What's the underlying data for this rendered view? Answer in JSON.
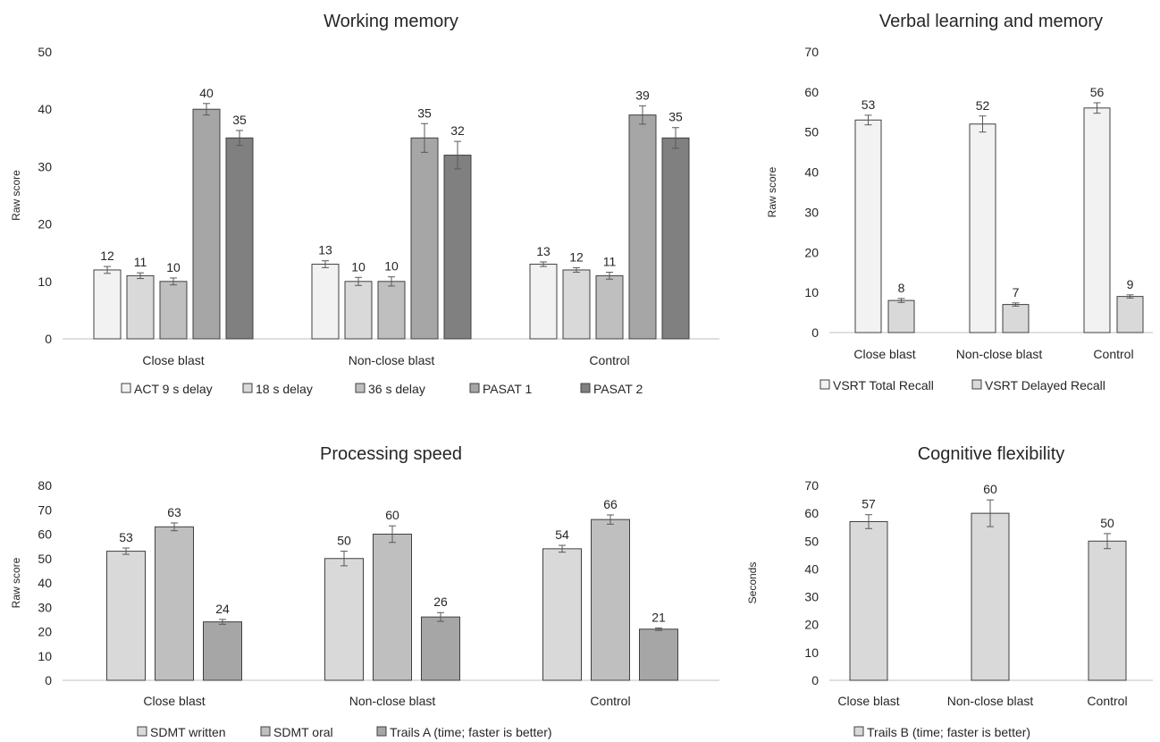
{
  "chart_data": [
    {
      "type": "bar",
      "title": "Working memory",
      "ylabel": "Raw score",
      "xlabel": "",
      "ylim": [
        0,
        50
      ],
      "yticks": [
        0,
        10,
        20,
        30,
        40,
        50
      ],
      "categories": [
        "Close blast",
        "Non-close blast",
        "Control"
      ],
      "series": [
        {
          "name": "ACT 9 s delay",
          "values": [
            12,
            13,
            13
          ],
          "errors": [
            0.6,
            0.6,
            0.4
          ],
          "color": "#f2f2f2",
          "label_color": "#262626"
        },
        {
          "name": "18 s delay",
          "values": [
            11,
            10,
            12
          ],
          "errors": [
            0.5,
            0.7,
            0.4
          ],
          "color": "#d9d9d9",
          "label_color": "#262626"
        },
        {
          "name": "36 s delay",
          "values": [
            10,
            10,
            11
          ],
          "errors": [
            0.6,
            0.8,
            0.6
          ],
          "color": "#bfbfbf",
          "label_color": "#262626"
        },
        {
          "name": "PASAT 1",
          "values": [
            40,
            35,
            39
          ],
          "errors": [
            1.0,
            2.5,
            1.6
          ],
          "color": "#a6a6a6",
          "label_color": "#262626"
        },
        {
          "name": "PASAT 2",
          "values": [
            35,
            32,
            35
          ],
          "errors": [
            1.3,
            2.4,
            1.8
          ],
          "color": "#808080",
          "label_color": "#262626"
        }
      ],
      "value_label_colors": [
        [
          "#262626",
          "#262626",
          "#262626",
          "#262626",
          "#262626"
        ],
        [
          "#262626",
          "#262626",
          "#262626",
          "#7f7f7f",
          "#7f7f7f"
        ],
        [
          "#262626",
          "#262626",
          "#262626",
          "#7f7f7f",
          "#7f7f7f"
        ]
      ],
      "legend": "bottom"
    },
    {
      "type": "bar",
      "title": "Verbal learning and memory",
      "ylabel": "Raw score",
      "xlabel": "",
      "ylim": [
        0,
        70
      ],
      "yticks": [
        0,
        10,
        20,
        30,
        40,
        50,
        60,
        70
      ],
      "categories": [
        "Close blast",
        "Non-close blast",
        "Control"
      ],
      "series": [
        {
          "name": "VSRT Total Recall",
          "values": [
            53,
            52,
            56
          ],
          "errors": [
            1.2,
            2.0,
            1.3
          ],
          "color": "#f2f2f2"
        },
        {
          "name": "VSRT Delayed Recall",
          "values": [
            8,
            7,
            9
          ],
          "errors": [
            0.5,
            0.4,
            0.4
          ],
          "color": "#d9d9d9"
        }
      ],
      "value_label_colors": [
        [
          "#262626",
          "#262626"
        ],
        [
          "#262626",
          "#262626"
        ],
        [
          "#262626",
          "#262626"
        ]
      ],
      "legend": "bottom"
    },
    {
      "type": "bar",
      "title": "Processing speed",
      "ylabel": "Raw score",
      "xlabel": "",
      "ylim": [
        0,
        80
      ],
      "yticks": [
        0,
        10,
        20,
        30,
        40,
        50,
        60,
        70,
        80
      ],
      "categories": [
        "Close blast",
        "Non-close blast",
        "Control"
      ],
      "series": [
        {
          "name": "SDMT written",
          "values": [
            53,
            50,
            54
          ],
          "errors": [
            1.3,
            3.0,
            1.4
          ],
          "color": "#d9d9d9"
        },
        {
          "name": "SDMT oral",
          "values": [
            63,
            60,
            66
          ],
          "errors": [
            1.6,
            3.4,
            1.9
          ],
          "color": "#bfbfbf"
        },
        {
          "name": "Trails A (time; faster is better)",
          "values": [
            24,
            26,
            21
          ],
          "errors": [
            1.0,
            1.8,
            0.5
          ],
          "color": "#a6a6a6"
        }
      ],
      "value_label_colors": [
        [
          "#262626",
          "#262626",
          "#262626"
        ],
        [
          "#262626",
          "#262626",
          "#262626"
        ],
        [
          "#262626",
          "#262626",
          "#262626"
        ]
      ],
      "legend": "bottom"
    },
    {
      "type": "bar",
      "title": "Cognitive flexibility",
      "ylabel": "Seconds",
      "xlabel": "",
      "ylim": [
        0,
        70
      ],
      "yticks": [
        0,
        10,
        20,
        30,
        40,
        50,
        60,
        70
      ],
      "categories": [
        "Close blast",
        "Non-close blast",
        "Control"
      ],
      "series": [
        {
          "name": "Trails B (time; faster is better)",
          "values": [
            57,
            60,
            50
          ],
          "errors": [
            2.5,
            4.8,
            2.7
          ],
          "color": "#d9d9d9"
        }
      ],
      "value_label_colors": [
        [
          "#262626"
        ],
        [
          "#7f7f7f"
        ],
        [
          "#262626"
        ]
      ],
      "legend": "bottom"
    }
  ]
}
